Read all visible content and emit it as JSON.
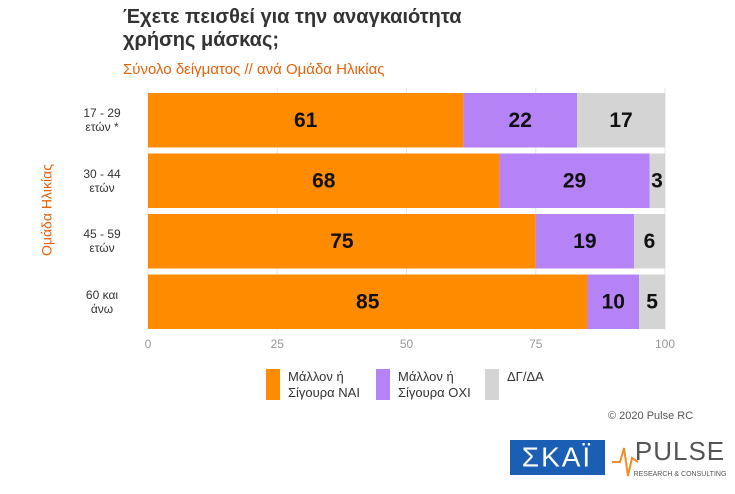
{
  "chart_data": {
    "type": "stacked-bar-horizontal",
    "title": "Έχετε πεισθεί για την αναγκαιότητα\nχρήσης μάσκας;",
    "subtitle": "Σύνολο δείγματος // ανά Ομάδα Ηλικίας",
    "y_label": "Ομάδα Ηλικίας",
    "categories": [
      "17 - 29\nετών *",
      "30 - 44\nετών",
      "45 - 59\nετών",
      "60 και\nάνω"
    ],
    "series": [
      {
        "name": "Μάλλον ή\nΣίγουρα ΝΑΙ",
        "color": "#ff8c00",
        "values": [
          61,
          68,
          75,
          85
        ]
      },
      {
        "name": "Μάλλον ή\nΣίγουρα ΟΧΙ",
        "color": "#b583f5",
        "values": [
          22,
          29,
          19,
          10
        ]
      },
      {
        "name": "ΔΓ/ΔΑ",
        "color": "#d4d4d4",
        "values": [
          17,
          3,
          6,
          5
        ]
      }
    ],
    "xlim": [
      0,
      100
    ],
    "xticks": [
      0,
      25,
      50,
      75,
      100
    ],
    "grid": true,
    "watermark": "PULSE",
    "watermark_sub": "RESEARCH & CONSULTING"
  },
  "footer": {
    "copyright": "© 2020 Pulse RC",
    "logo_left": "ΣΚΑΪ",
    "logo_right": "PULSE",
    "logo_right_sub": "RESEARCH & CONSULTING"
  }
}
